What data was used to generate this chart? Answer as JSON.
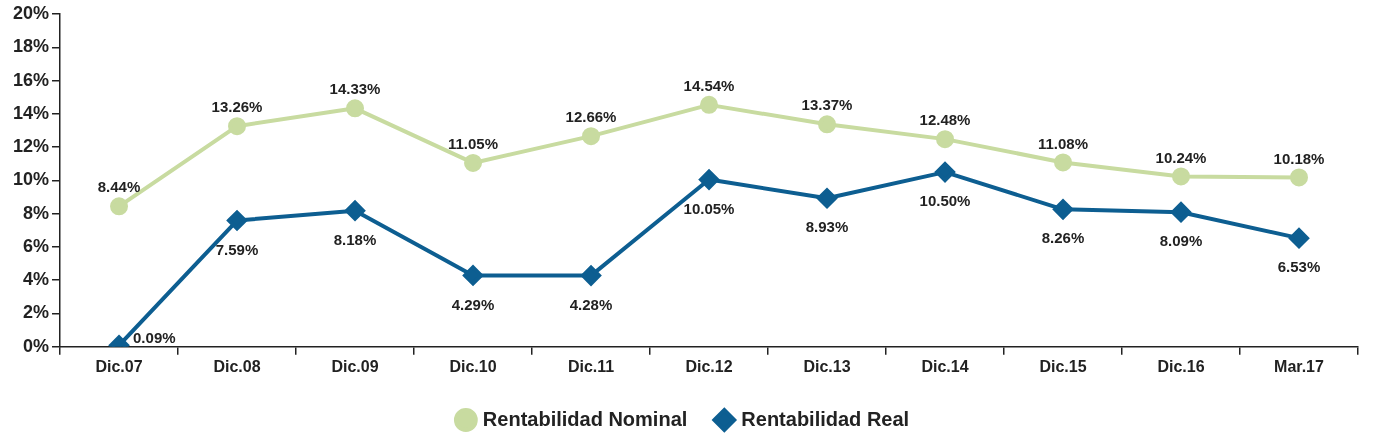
{
  "chart_data": {
    "type": "line",
    "categories": [
      "Dic.07",
      "Dic.08",
      "Dic.09",
      "Dic.10",
      "Dic.11",
      "Dic.12",
      "Dic.13",
      "Dic.14",
      "Dic.15",
      "Dic.16",
      "Mar.17"
    ],
    "series": [
      {
        "name": "Rentabilidad Nominal",
        "color": "#c8dba0",
        "marker": "circle",
        "values": [
          8.44,
          13.26,
          14.33,
          11.05,
          12.66,
          14.54,
          13.37,
          12.48,
          11.08,
          10.24,
          10.18
        ],
        "value_labels": [
          "8.44%",
          "13.26%",
          "14.33%",
          "11.05%",
          "12.66%",
          "14.54%",
          "13.37%",
          "12.48%",
          "11.08%",
          "10.24%",
          "10.18%"
        ]
      },
      {
        "name": "Rentabilidad Real",
        "color": "#0d5e91",
        "marker": "diamond",
        "values": [
          0.09,
          7.59,
          8.18,
          4.29,
          4.28,
          10.05,
          8.93,
          10.5,
          8.26,
          8.09,
          6.53
        ],
        "value_labels": [
          "0.09%",
          "7.59%",
          "8.18%",
          "4.29%",
          "4.28%",
          "10.05%",
          "8.93%",
          "10.50%",
          "8.26%",
          "8.09%",
          "6.53%"
        ]
      }
    ],
    "ylim": [
      0,
      20
    ],
    "yticks": [
      {
        "value": 0,
        "label": "0%"
      },
      {
        "value": 2,
        "label": "2%"
      },
      {
        "value": 4,
        "label": "4%"
      },
      {
        "value": 6,
        "label": "6%"
      },
      {
        "value": 8,
        "label": "8%"
      },
      {
        "value": 10,
        "label": "10%"
      },
      {
        "value": 12,
        "label": "12%"
      },
      {
        "value": 14,
        "label": "14%"
      },
      {
        "value": 16,
        "label": "16%"
      },
      {
        "value": 18,
        "label": "18%"
      },
      {
        "value": 20,
        "label": "20%"
      }
    ],
    "grid": false,
    "legend": "bottom",
    "line_style": "solid"
  }
}
